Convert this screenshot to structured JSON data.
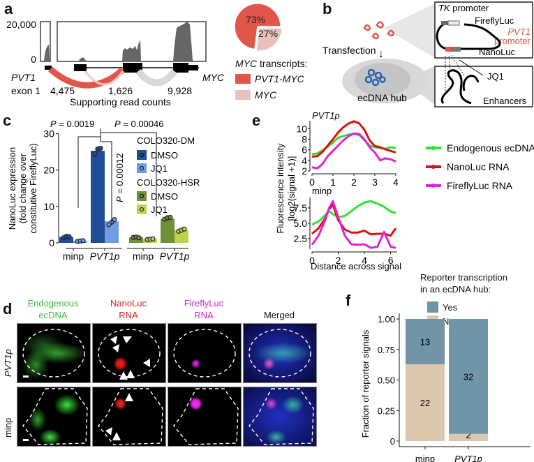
{
  "panels": {
    "a": {
      "label": "a",
      "y_ticks": [
        "20,000",
        "0"
      ],
      "gene_left": "PVT1",
      "gene_left_sub": "exon 1",
      "gene_right": "MYC",
      "read_counts": [
        "4,475",
        "1,626",
        "9,928"
      ],
      "read_counts_label": "Supporting read counts",
      "pie": {
        "slices": [
          {
            "name": "PVT1-MYC",
            "percent": 73,
            "label": "73%",
            "color": "#e0564a"
          },
          {
            "name": "MYC",
            "percent": 27,
            "label": "27%",
            "color": "#e8c0bc"
          }
        ],
        "legend_title_italic": "MYC",
        "legend_title_rest": " transcripts:",
        "legend": [
          "PVT1-MYC",
          "MYC"
        ]
      }
    },
    "b": {
      "label": "b",
      "transfection": "Transfection",
      "hub": "ecDNA hub",
      "tk_italic": "TK",
      "tk_rest": " promoter",
      "fireflyluc": "FireflyLuc",
      "pvt1_promoter_1": "PVT1",
      "pvt1_promoter_2": "promoter",
      "nanoluc": "NanoLuc",
      "jq1": "JQ1",
      "enhancers": "Enhancers"
    },
    "c": {
      "label": "c",
      "ylabel_lines": [
        "NanoLuc expression",
        "(fold change over",
        "constitutive FireflyLuc)"
      ],
      "p_values": [
        "P = 0.0019",
        "P = 0.00046",
        "P = 0.00012"
      ],
      "legend_group1": "COLO320-DM",
      "legend_group2": "COLO320-HSR",
      "legend_items": [
        "DMSO",
        "JQ1",
        "DMSO",
        "JQ1"
      ],
      "xticks": [
        "minp",
        "PVT1p",
        "minp",
        "PVT1p"
      ]
    },
    "d": {
      "label": "d",
      "columns": [
        {
          "line1": "Endogenous",
          "line2": "ecDNA",
          "color": "#3cb83c"
        },
        {
          "line1": "NanoLuc",
          "line2": "RNA",
          "color": "#d42020"
        },
        {
          "line1": "FireflyLuc",
          "line2": "RNA",
          "color": "#d020d0"
        },
        {
          "line1": "",
          "line2": "Merged",
          "color": "#111111"
        }
      ],
      "rows": [
        "PVT1p",
        "minp"
      ]
    },
    "e": {
      "label": "e",
      "ylabel_1": "Fluorescence intensity",
      "ylabel_2": "[log2(signal +1)]",
      "xlabel": "Distance across signal",
      "legend": [
        {
          "name": "Endogenous ecDNA",
          "color": "#33dd33"
        },
        {
          "name": "NanoLuc RNA",
          "color": "#dd1111"
        },
        {
          "name": "FireflyLuc RNA",
          "color": "#dd22dd"
        }
      ]
    },
    "f": {
      "label": "f",
      "legend_title_1": "Reporter transcription",
      "legend_title_2": "in an ecDNA hub:",
      "legend": [
        {
          "name": "Yes",
          "color": "#6f95a6"
        },
        {
          "name": "No",
          "color": "#dcc6ac"
        }
      ],
      "ylabel": "Fraction of reporter signals"
    }
  },
  "chart_data": [
    {
      "id": "pie-a",
      "type": "pie",
      "title": "MYC transcripts",
      "categories": [
        "PVT1-MYC",
        "MYC"
      ],
      "values": [
        73,
        27
      ]
    },
    {
      "id": "bar-c",
      "type": "bar",
      "title": "",
      "xlabel": "",
      "ylabel": "NanoLuc expression (fold change over constitutive FireflyLuc)",
      "ylim": [
        0,
        30
      ],
      "yticks": [
        0,
        10,
        20,
        30
      ],
      "categories": [
        "minp",
        "PVT1p",
        "minp",
        "PVT1p"
      ],
      "series": [
        {
          "name": "COLO320-DM DMSO",
          "color": "#1f4e96",
          "values": [
            1.6,
            25.3,
            null,
            null
          ],
          "points": [
            [
              1.4,
              1.8,
              1.7
            ],
            [
              24.5,
              25.8,
              26.0
            ],
            [],
            []
          ]
        },
        {
          "name": "COLO320-DM JQ1",
          "color": "#6f9be0",
          "values": [
            0.5,
            5.9,
            null,
            null
          ],
          "points": [
            [
              0.4,
              0.5,
              0.6
            ],
            [
              5.0,
              5.7,
              6.4
            ],
            [],
            []
          ]
        },
        {
          "name": "COLO320-HSR DMSO",
          "color": "#6f8f3a",
          "values": [
            null,
            null,
            1.5,
            6.6
          ],
          "points": [
            [],
            [],
            [
              1.5,
              1.6,
              1.4
            ],
            [
              6.5,
              6.9,
              7.0
            ]
          ]
        },
        {
          "name": "COLO320-HSR JQ1",
          "color": "#b8d44a",
          "values": [
            null,
            null,
            1.0,
            3.5
          ],
          "points": [
            [],
            [],
            [
              0.9,
              1.0,
              1.1
            ],
            [
              3.2,
              3.5,
              3.8
            ]
          ]
        }
      ],
      "annotations": [
        "P = 0.0019",
        "P = 0.00046",
        "P = 0.00012"
      ]
    },
    {
      "id": "line-e-top",
      "type": "line",
      "title": "PVT1p",
      "xlim": [
        0,
        4
      ],
      "ylim": [
        2,
        11.5
      ],
      "xticks": [
        0,
        1,
        2,
        3,
        4
      ],
      "yticks": [
        2,
        4,
        6,
        8,
        10
      ],
      "x": [
        0,
        0.25,
        0.5,
        0.75,
        1.0,
        1.25,
        1.5,
        1.75,
        2.0,
        2.25,
        2.5,
        2.75,
        3.0,
        3.25,
        3.5,
        3.75,
        4.0
      ],
      "series": [
        {
          "name": "Endogenous ecDNA",
          "color": "#33dd33",
          "values": [
            5.2,
            5.3,
            5.9,
            6.6,
            7.4,
            8.3,
            8.6,
            8.9,
            9.0,
            8.8,
            7.8,
            6.8,
            6.5,
            6.3,
            6.2,
            6.5,
            6.3
          ]
        },
        {
          "name": "NanoLuc RNA",
          "color": "#dd1111",
          "values": [
            4.7,
            4.8,
            5.6,
            6.8,
            8.0,
            9.3,
            10.3,
            11.0,
            11.4,
            11.0,
            9.8,
            7.8,
            6.7,
            6.5,
            6.1,
            5.8,
            5.5
          ]
        },
        {
          "name": "FireflyLuc RNA",
          "color": "#dd22dd",
          "values": [
            2.7,
            2.5,
            3.3,
            4.8,
            5.8,
            6.8,
            7.8,
            8.6,
            9.1,
            9.0,
            8.0,
            6.5,
            5.5,
            4.0,
            4.4,
            4.2,
            3.8
          ]
        }
      ]
    },
    {
      "id": "line-e-bottom",
      "type": "line",
      "title": "minp",
      "xlim": [
        0,
        6.5
      ],
      "ylim": [
        0.8,
        9.2
      ],
      "xticks": [
        0,
        2,
        4,
        6
      ],
      "yticks": [
        2.5,
        5.0,
        7.5
      ],
      "x": [
        0,
        0.5,
        1.0,
        1.3,
        1.6,
        2.0,
        2.5,
        3.0,
        3.5,
        4.0,
        4.5,
        5.0,
        5.5,
        6.0,
        6.4
      ],
      "series": [
        {
          "name": "Endogenous ecDNA",
          "color": "#33dd33",
          "values": [
            4.8,
            5.3,
            6.3,
            7.0,
            6.5,
            6.0,
            6.2,
            7.0,
            7.8,
            8.4,
            8.6,
            8.2,
            7.7,
            6.9,
            6.7
          ]
        },
        {
          "name": "NanoLuc RNA",
          "color": "#dd1111",
          "values": [
            3.3,
            4.2,
            5.8,
            7.3,
            8.0,
            5.5,
            4.0,
            3.5,
            3.5,
            3.8,
            3.2,
            3.3,
            3.3,
            3.0,
            4.2
          ]
        },
        {
          "name": "FireflyLuc RNA",
          "color": "#dd22dd",
          "values": [
            1.5,
            3.0,
            5.5,
            7.5,
            8.6,
            6.0,
            3.0,
            1.6,
            1.5,
            1.6,
            1.0,
            1.2,
            3.6,
            1.2,
            1.0
          ]
        }
      ],
      "xlabel": "Distance across signal",
      "ylabel": "Fluorescence intensity [log2(signal +1)]"
    },
    {
      "id": "stacked-f",
      "type": "bar",
      "stacked": true,
      "ylabel": "Fraction of reporter signals",
      "ylim": [
        0,
        1
      ],
      "yticks": [
        "0",
        "0.25",
        "0.50",
        "0.75",
        "1.00"
      ],
      "categories": [
        "minp",
        "PVT1p"
      ],
      "series": [
        {
          "name": "No",
          "color": "#dcc6ac",
          "values": [
            0.629,
            0.059
          ],
          "counts": [
            22,
            2
          ]
        },
        {
          "name": "Yes",
          "color": "#6f95a6",
          "values": [
            0.371,
            0.941
          ],
          "counts": [
            13,
            32
          ]
        }
      ]
    }
  ]
}
